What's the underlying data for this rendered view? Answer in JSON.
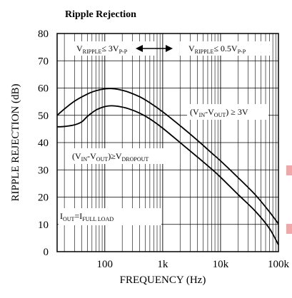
{
  "chart_data": {
    "type": "line",
    "title": "Ripple Rejection",
    "xlabel": "FREQUENCY (Hz)",
    "ylabel": "RIPPLE REJECTION (dB)",
    "xscale": "log",
    "xlim": [
      15,
      100000
    ],
    "ylim": [
      0,
      80
    ],
    "grid": true,
    "x_ticks": [
      {
        "value": 100,
        "label": "100"
      },
      {
        "value": 1000,
        "label": "1k"
      },
      {
        "value": 10000,
        "label": "10k"
      },
      {
        "value": 100000,
        "label": "100k"
      }
    ],
    "y_ticks": [
      {
        "value": 0,
        "label": "0"
      },
      {
        "value": 10,
        "label": "10"
      },
      {
        "value": 20,
        "label": "20"
      },
      {
        "value": 30,
        "label": "30"
      },
      {
        "value": 40,
        "label": "40"
      },
      {
        "value": 50,
        "label": "50"
      },
      {
        "value": 60,
        "label": "60"
      },
      {
        "value": 70,
        "label": "70"
      },
      {
        "value": 80,
        "label": "80"
      }
    ],
    "series": [
      {
        "label": "(VIN-VOUT) ≥ 3V",
        "x": [
          15,
          20,
          30,
          50,
          70,
          100,
          130,
          170,
          250,
          400,
          600,
          1000,
          2000,
          4000,
          7000,
          10000,
          20000,
          40000,
          70000,
          100000
        ],
        "y": [
          50,
          52.3,
          55.2,
          57.8,
          59.0,
          59.7,
          59.8,
          59.5,
          58.6,
          56.8,
          54.6,
          51.3,
          46.2,
          40.8,
          36.2,
          33.3,
          27.2,
          20.8,
          14.6,
          10.2
        ]
      },
      {
        "label": "(VIN-VOUT)≥VDROPOUT",
        "x": [
          15,
          20,
          30,
          40,
          50,
          70,
          100,
          130,
          170,
          250,
          400,
          600,
          1000,
          2000,
          4000,
          7000,
          10000,
          20000,
          40000,
          70000,
          100000
        ],
        "y": [
          45.8,
          45.9,
          46.5,
          47.6,
          49.6,
          51.9,
          53.2,
          53.5,
          53.3,
          52.5,
          50.8,
          48.7,
          45.3,
          40.0,
          34.7,
          30.3,
          27.3,
          21.0,
          14.8,
          8.5,
          2.5
        ]
      }
    ],
    "annotations": {
      "ripple_left": {
        "main": "V",
        "sub": "RIPPLE",
        "rest": "≤ 3V",
        "sub2": "P-P"
      },
      "ripple_right": {
        "main": "V",
        "sub": "RIPPLE",
        "rest": "≤ 0.5V",
        "sub2": "P-P"
      },
      "upper_curve": {
        "p1": "(V",
        "s1": "IN",
        "p2": "-V",
        "s2": "OUT",
        "p3": ") ≥ 3V"
      },
      "lower_curve": {
        "p1": "(V",
        "s1": "IN",
        "p2": "-V",
        "s2": "OUT",
        "p3": ")≥V",
        "s3": "DROPOUT"
      },
      "load": {
        "p1": "I",
        "s1": "OUT",
        "p2": "=I",
        "s2": "FULL LOAD"
      }
    }
  }
}
